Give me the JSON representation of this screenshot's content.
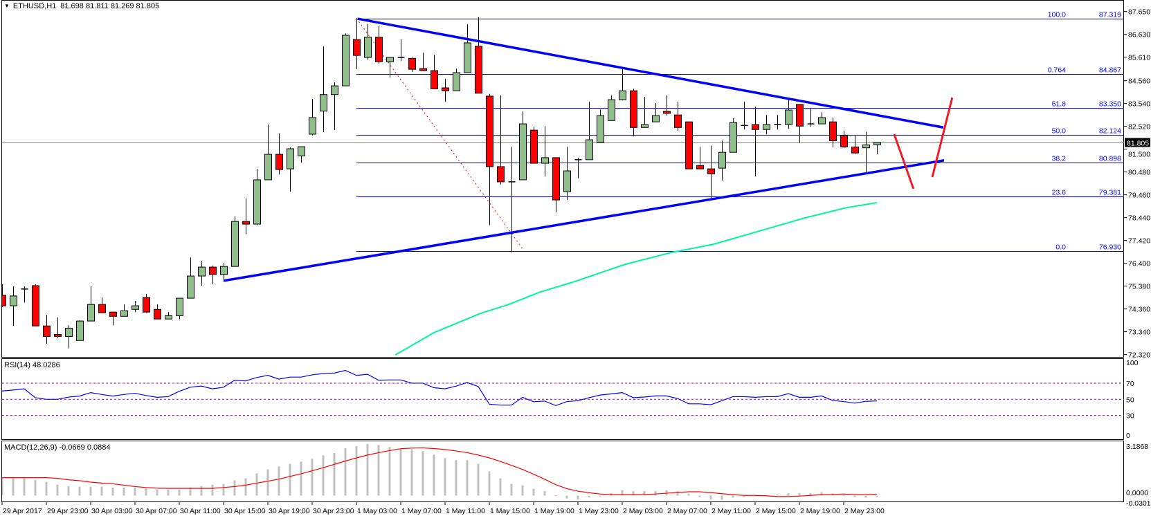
{
  "header": {
    "symbol": "ETHUSD,H1",
    "ohlc": "81.698 81.811 81.269 81.805"
  },
  "colors": {
    "bull": "#8fbf8b",
    "bear": "#ff0000",
    "trendline": "#0000ff",
    "fib": "#0000ff",
    "ma": "#00f59a",
    "drawing": "#ee1c25",
    "rsi": "#0000ff",
    "level": "#9900cc",
    "histogram": "#c0c0c0",
    "signal": "#ff0000",
    "price_line": "#808080"
  },
  "chart_data": {
    "type": "candlestick",
    "current_price": "81.805",
    "price_range": [
      72.32,
      87.65
    ],
    "price_ticks": [
      "87.650",
      "86.630",
      "85.610",
      "84.560",
      "83.540",
      "82.520",
      "81.500",
      "80.480",
      "79.460",
      "78.440",
      "77.420",
      "76.400",
      "75.380",
      "74.360",
      "73.340",
      "72.320"
    ],
    "time_labels": [
      {
        "label": "29 Apr 2017",
        "index": 0
      },
      {
        "label": "29 Apr 23:00",
        "index": 4
      },
      {
        "label": "30 Apr 03:00",
        "index": 8
      },
      {
        "label": "30 Apr 07:00",
        "index": 12
      },
      {
        "label": "30 Apr 11:00",
        "index": 16
      },
      {
        "label": "30 Apr 15:00",
        "index": 20
      },
      {
        "label": "30 Apr 19:00",
        "index": 24
      },
      {
        "label": "30 Apr 23:00",
        "index": 28
      },
      {
        "label": "1 May 03:00",
        "index": 32
      },
      {
        "label": "1 May 07:00",
        "index": 36
      },
      {
        "label": "1 May 11:00",
        "index": 40
      },
      {
        "label": "1 May 15:00",
        "index": 44
      },
      {
        "label": "1 May 19:00",
        "index": 48
      },
      {
        "label": "1 May 23:00",
        "index": 52
      },
      {
        "label": "2 May 03:00",
        "index": 56
      },
      {
        "label": "2 May 07:00",
        "index": 60
      },
      {
        "label": "2 May 11:00",
        "index": 64
      },
      {
        "label": "2 May 15:00",
        "index": 68
      },
      {
        "label": "2 May 19:00",
        "index": 72
      },
      {
        "label": "2 May 23:00",
        "index": 76
      }
    ],
    "candles_ohlc": [
      [
        74.97,
        75.46,
        74.44,
        74.5
      ],
      [
        74.5,
        75.37,
        73.6,
        74.94
      ],
      [
        75.25,
        75.37,
        74.65,
        75.25
      ],
      [
        75.4,
        75.46,
        73.6,
        73.6
      ],
      [
        73.6,
        74.1,
        72.8,
        73.13
      ],
      [
        73.22,
        73.98,
        73.05,
        73.13
      ],
      [
        73.13,
        73.63,
        72.6,
        73.5
      ],
      [
        72.95,
        73.85,
        72.95,
        73.82
      ],
      [
        73.82,
        75.37,
        73.82,
        74.56
      ],
      [
        74.56,
        74.87,
        74.19,
        74.19
      ],
      [
        74.22,
        74.22,
        73.63,
        74.03
      ],
      [
        74.03,
        74.56,
        74.03,
        74.28
      ],
      [
        74.34,
        74.72,
        74.22,
        74.5
      ],
      [
        74.87,
        75.03,
        74.19,
        74.22
      ],
      [
        74.34,
        74.56,
        73.91,
        73.91
      ],
      [
        73.91,
        74.22,
        73.91,
        74.06
      ],
      [
        74.06,
        74.84,
        73.9,
        74.84
      ],
      [
        74.84,
        76.66,
        74.84,
        75.83
      ],
      [
        75.83,
        76.51,
        75.4,
        76.23
      ],
      [
        76.23,
        76.3,
        75.46,
        75.9
      ],
      [
        75.9,
        76.42,
        75.59,
        76.26
      ],
      [
        76.26,
        78.5,
        76.26,
        78.27
      ],
      [
        78.27,
        79.3,
        77.7,
        78.15
      ],
      [
        78.15,
        80.62,
        78.1,
        80.13
      ],
      [
        80.13,
        82.6,
        80.13,
        81.27
      ],
      [
        81.27,
        82.2,
        80.37,
        80.59
      ],
      [
        80.62,
        81.58,
        79.6,
        81.52
      ],
      [
        81.2,
        81.61,
        80.9,
        81.61
      ],
      [
        82.17,
        83.74,
        82.12,
        82.91
      ],
      [
        83.2,
        86.09,
        82.26,
        83.94
      ],
      [
        83.94,
        84.48,
        82.35,
        84.33
      ],
      [
        84.33,
        86.68,
        84.33,
        86.59
      ],
      [
        86.4,
        87.35,
        85.07,
        85.69
      ],
      [
        85.6,
        87.1,
        85.5,
        86.5
      ],
      [
        86.5,
        86.99,
        85.32,
        85.41
      ],
      [
        85.41,
        85.6,
        84.7,
        85.6
      ],
      [
        85.6,
        86.4,
        85.44,
        85.6
      ],
      [
        85.56,
        85.6,
        84.95,
        85.07
      ],
      [
        85.1,
        85.81,
        85.0,
        85.01
      ],
      [
        85.01,
        85.72,
        84.2,
        84.2
      ],
      [
        84.24,
        84.64,
        83.62,
        84.11
      ],
      [
        84.11,
        85.1,
        84.11,
        84.92
      ],
      [
        84.92,
        87.08,
        84.92,
        86.25
      ],
      [
        86.1,
        87.4,
        84.0,
        84.0
      ],
      [
        83.87,
        83.97,
        78.1,
        80.72
      ],
      [
        80.72,
        83.9,
        79.92,
        80.04
      ],
      [
        80.04,
        81.6,
        76.9,
        80.04
      ],
      [
        80.13,
        83.18,
        80.13,
        82.63
      ],
      [
        82.35,
        82.5,
        80.87,
        80.87
      ],
      [
        80.87,
        82.53,
        80.28,
        81.12
      ],
      [
        81.12,
        81.12,
        78.68,
        79.23
      ],
      [
        79.6,
        81.6,
        79.23,
        80.53
      ],
      [
        81.03,
        81.12,
        80.2,
        81.03
      ],
      [
        81.03,
        83.62,
        81.03,
        81.92
      ],
      [
        81.8,
        83.28,
        81.8,
        83.0
      ],
      [
        82.78,
        83.9,
        82.78,
        83.71
      ],
      [
        83.71,
        85.07,
        83.68,
        84.11
      ],
      [
        84.11,
        84.2,
        82.07,
        82.47
      ],
      [
        82.47,
        83.84,
        82.47,
        82.6
      ],
      [
        82.72,
        83.56,
        82.72,
        83.0
      ],
      [
        83.19,
        83.9,
        83.0,
        83.1
      ],
      [
        83.03,
        83.62,
        82.32,
        82.47
      ],
      [
        82.72,
        82.72,
        80.62,
        80.62
      ],
      [
        80.77,
        81.6,
        80.62,
        80.62
      ],
      [
        80.62,
        81.66,
        79.3,
        80.4
      ],
      [
        80.65,
        81.88,
        80.1,
        81.36
      ],
      [
        81.36,
        82.88,
        81.36,
        82.69
      ],
      [
        82.56,
        83.62,
        82.38,
        82.56
      ],
      [
        82.6,
        83.4,
        80.28,
        82.38
      ],
      [
        82.38,
        83.03,
        82.16,
        82.6
      ],
      [
        82.6,
        83.03,
        82.38,
        82.6
      ],
      [
        82.6,
        83.74,
        82.41,
        83.25
      ],
      [
        83.5,
        83.5,
        81.79,
        82.53
      ],
      [
        82.63,
        83.31,
        82.5,
        82.63
      ],
      [
        82.63,
        83.15,
        82.63,
        82.91
      ],
      [
        82.72,
        82.91,
        81.58,
        81.88
      ],
      [
        82.1,
        82.32,
        81.55,
        81.6
      ],
      [
        81.6,
        82.1,
        81.27,
        81.33
      ],
      [
        81.56,
        82.28,
        80.47,
        81.69
      ],
      [
        81.698,
        81.811,
        81.269,
        81.805
      ]
    ],
    "moving_average": [
      [
        35.5,
        72.3
      ],
      [
        39,
        73.3
      ],
      [
        43.2,
        74.16
      ],
      [
        45.75,
        74.56
      ],
      [
        48.5,
        75.1
      ],
      [
        51.5,
        75.55
      ],
      [
        56.25,
        76.35
      ],
      [
        60.4,
        76.88
      ],
      [
        64.25,
        77.25
      ],
      [
        69.3,
        77.97
      ],
      [
        72.5,
        78.43
      ],
      [
        76.3,
        78.89
      ],
      [
        79,
        79.11
      ]
    ],
    "fibonacci": {
      "start_index": 32,
      "levels": [
        {
          "ratio": "100.0",
          "price": "87.319"
        },
        {
          "ratio": "0.764",
          "price": "84.867"
        },
        {
          "ratio": "61.8",
          "price": "83.350"
        },
        {
          "ratio": "50.0",
          "price": "82.124"
        },
        {
          "ratio": "38.2",
          "price": "80.898"
        },
        {
          "ratio": "23.6",
          "price": "79.381"
        },
        {
          "ratio": "0.0",
          "price": "76.930"
        }
      ],
      "swing": [
        [
          32,
          87.35
        ],
        [
          47.1,
          76.98
        ]
      ]
    },
    "trendlines": [
      [
        [
          32.1,
          87.33
        ],
        [
          85,
          82.47
        ]
      ],
      [
        [
          20,
          75.62
        ],
        [
          85.06,
          81.0
        ]
      ]
    ],
    "drawings": [
      [
        [
          80.56,
          82.17
        ],
        [
          82.3,
          79.73
        ]
      ],
      [
        [
          84,
          80.25
        ],
        [
          85.8,
          83.8
        ]
      ]
    ],
    "rsi": {
      "title": "RSI(14) 48.0286",
      "ticks": [
        "100",
        "70",
        "50",
        "30",
        "0"
      ],
      "levels": [
        70,
        50,
        30
      ],
      "values": [
        60.3,
        61.5,
        63,
        52,
        50,
        50,
        52.8,
        54,
        58.3,
        56,
        54,
        56,
        57.5,
        54.7,
        52.5,
        53.3,
        60,
        65,
        66.4,
        63,
        65,
        73.6,
        72.8,
        77,
        79.7,
        75,
        77.5,
        77.5,
        80.3,
        82,
        82.5,
        85.8,
        79.7,
        81,
        73.6,
        74,
        74,
        70,
        70,
        64.4,
        63,
        66.4,
        70.8,
        65.8,
        44,
        42.8,
        42.8,
        52.5,
        47,
        47.8,
        42.2,
        47.2,
        48.3,
        52,
        55.3,
        56.7,
        58.3,
        52,
        52.8,
        54.2,
        54.2,
        51,
        44.4,
        44.4,
        43.3,
        48.3,
        53.3,
        53.3,
        52.5,
        53.3,
        53.3,
        57,
        52.5,
        52.5,
        54.2,
        48.6,
        47.2,
        45.3,
        47.5,
        48.03
      ]
    },
    "macd": {
      "title": "MACD(12,26,9) -0.0669 0.0884",
      "ticks": [
        "3.1868",
        "0.0000",
        "-0.0301"
      ],
      "histogram": [
        1.13,
        1.18,
        1.18,
        0.99,
        0.87,
        0.69,
        0.6,
        0.56,
        0.56,
        0.56,
        0.51,
        0.51,
        0.51,
        0.47,
        0.38,
        0.38,
        0.38,
        0.51,
        0.6,
        0.69,
        0.74,
        0.96,
        1.09,
        1.4,
        1.66,
        1.84,
        2.01,
        2.15,
        2.32,
        2.54,
        2.68,
        2.99,
        3.12,
        3.25,
        3.2,
        3.07,
        2.94,
        2.94,
        2.81,
        2.59,
        2.37,
        2.24,
        2.24,
        2.01,
        1.53,
        1.09,
        0.74,
        0.65,
        0.43,
        0.29,
        0.02,
        -0.18,
        -0.24,
        -0.12,
        -0.04,
        0.16,
        0.34,
        0.29,
        0.29,
        0.29,
        0.34,
        0.29,
        0.12,
        -0.09,
        -0.24,
        -0.26,
        -0.13,
        -0.09,
        0.04,
        0.03,
        0.07,
        0.16,
        0.16,
        0.16,
        0.21,
        0.12,
        0.03,
        -0.09,
        -0.13,
        -0.07
      ],
      "signal": [
        1.13,
        1.13,
        1.13,
        1.13,
        1.13,
        1.09,
        1.0,
        0.94,
        0.85,
        0.79,
        0.74,
        0.66,
        0.57,
        0.51,
        0.47,
        0.46,
        0.46,
        0.46,
        0.46,
        0.46,
        0.51,
        0.57,
        0.66,
        0.79,
        0.91,
        1.04,
        1.21,
        1.38,
        1.57,
        1.76,
        1.97,
        2.18,
        2.38,
        2.56,
        2.71,
        2.84,
        2.96,
        3.0,
        3.01,
        2.97,
        2.91,
        2.82,
        2.71,
        2.56,
        2.38,
        2.16,
        1.91,
        1.65,
        1.35,
        1.03,
        0.69,
        0.44,
        0.28,
        0.18,
        0.1,
        0.06,
        0.06,
        0.06,
        0.06,
        0.1,
        0.15,
        0.19,
        0.24,
        0.24,
        0.19,
        0.12,
        0.06,
        0.01,
        0.01,
        -0.01,
        -0.06,
        -0.06,
        -0.03,
        0.01,
        0.06,
        0.06,
        0.1,
        0.06,
        0.06,
        0.09
      ]
    }
  }
}
